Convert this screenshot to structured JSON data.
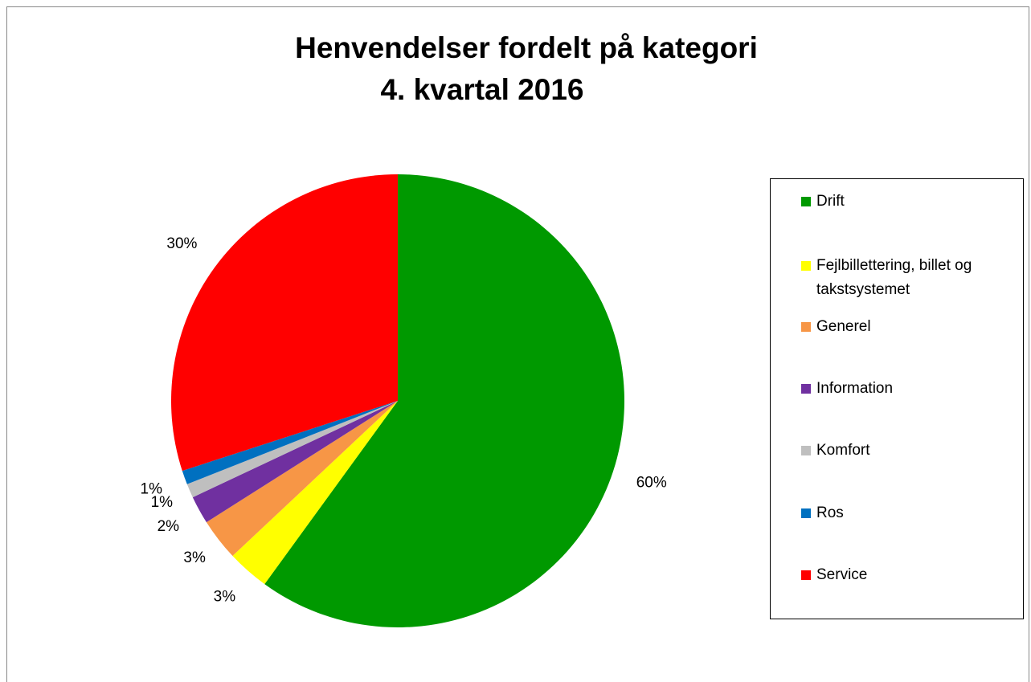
{
  "chart_data": {
    "type": "pie",
    "title": "Henvendelser fordelt på kategori",
    "subtitle": "4. kvartal 2016",
    "categories": [
      "Drift",
      "Fejlbillettering, billet og takstsystemet",
      "Generel",
      "Information",
      "Komfort",
      "Ros",
      "Service"
    ],
    "values": [
      60,
      3,
      3,
      2,
      1,
      1,
      30
    ],
    "value_labels": [
      "60%",
      "3%",
      "3%",
      "2%",
      "1%",
      "1%",
      "30%"
    ],
    "colors": [
      "#009900",
      "#ffff00",
      "#f79646",
      "#7030a0",
      "#bfbfbf",
      "#0070c0",
      "#ff0000"
    ],
    "legend": "right"
  }
}
